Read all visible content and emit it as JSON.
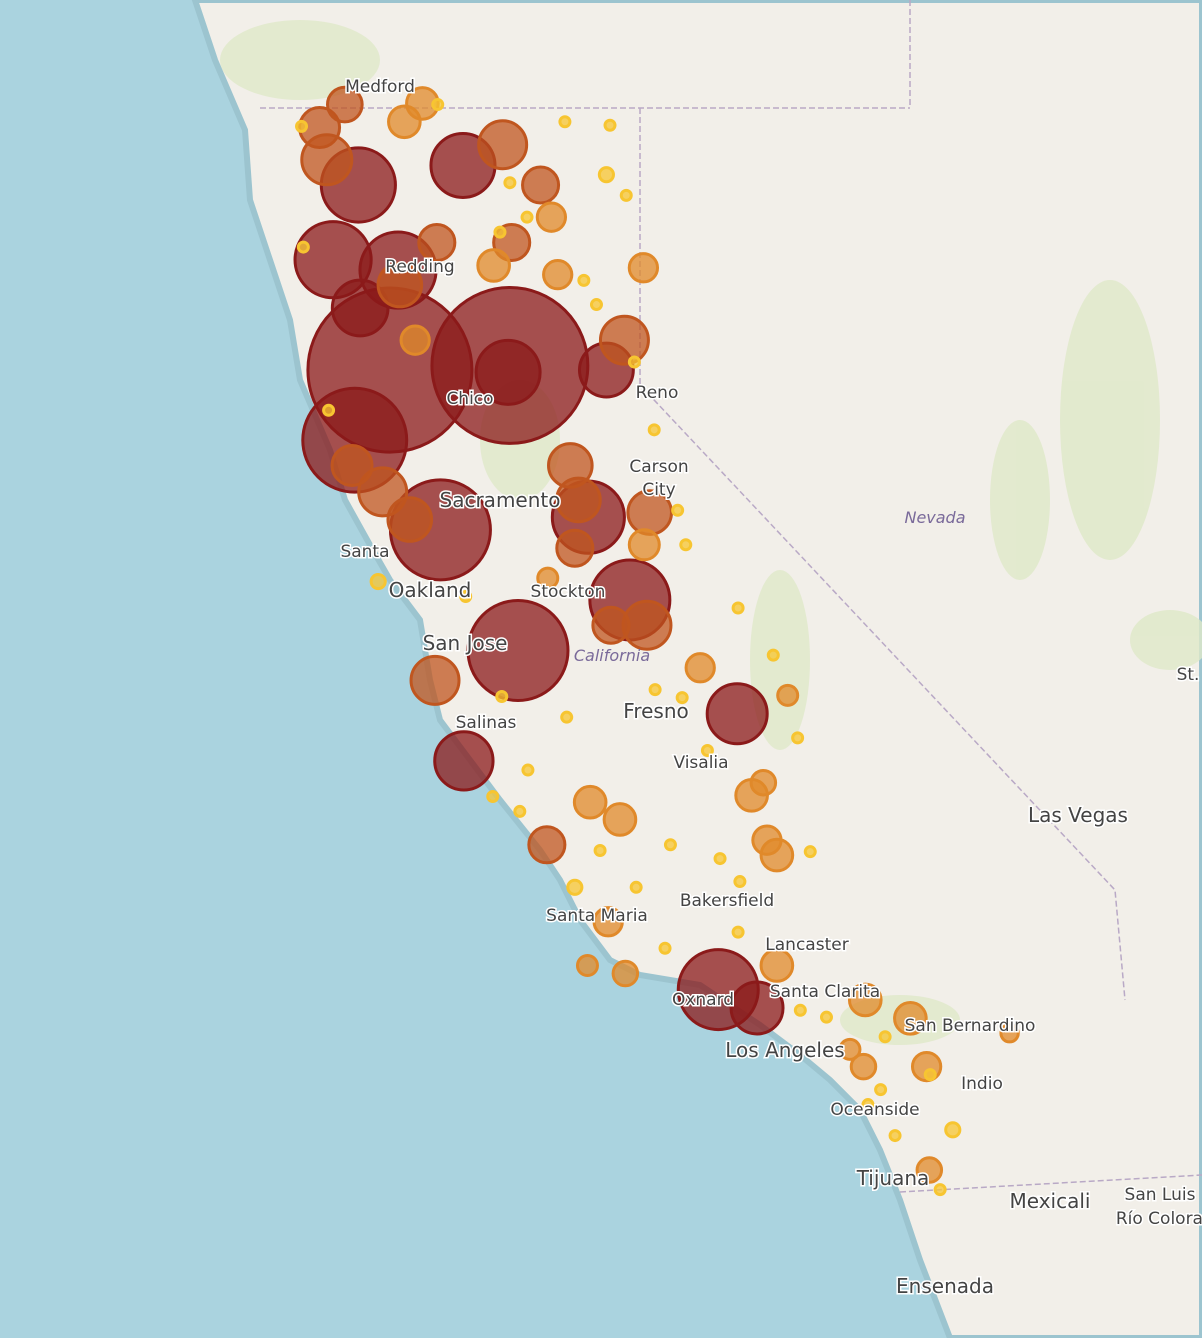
{
  "map": {
    "places": [
      "Medford",
      "Redding",
      "Chico",
      "Reno",
      "Carson",
      "City",
      "Sacramento",
      "Santa",
      "Oakland",
      "Stockton",
      "San Jose",
      "California",
      "Fresno",
      "Salinas",
      "Visalia",
      "Bakersfield",
      "Santa Maria",
      "Lancaster",
      "Santa Clarita",
      "San Bernardino",
      "Oxnard",
      "Los Angeles",
      "Indio",
      "Oceanside",
      "Tijuana",
      "Mexicali",
      "San Luis",
      "Río Colorado",
      "Ensenada",
      "Las Vegas",
      "Nevada",
      "St."
    ],
    "fire_layers": [
      {
        "color": "#8b1a1a",
        "fires": [
          {
            "lon": -122.76,
            "lat": 39.85,
            "size": 269
          },
          {
            "lon": -121.43,
            "lat": 39.89,
            "size": 243
          },
          {
            "lon": -123.15,
            "lat": 39.24,
            "size": 108
          },
          {
            "lon": -122.2,
            "lat": 38.46,
            "size": 100
          },
          {
            "lon": -121.34,
            "lat": 37.41,
            "size": 100
          },
          {
            "lon": -119.12,
            "lat": 34.46,
            "size": 64
          },
          {
            "lon": -120.1,
            "lat": 37.85,
            "size": 64
          },
          {
            "lon": -123.39,
            "lat": 40.81,
            "size": 58
          },
          {
            "lon": -122.67,
            "lat": 40.72,
            "size": 58
          },
          {
            "lon": -123.11,
            "lat": 41.46,
            "size": 55
          },
          {
            "lon": -120.56,
            "lat": 38.57,
            "size": 52
          },
          {
            "lon": -121.95,
            "lat": 41.63,
            "size": 41
          },
          {
            "lon": -121.45,
            "lat": 39.83,
            "size": 41
          },
          {
            "lon": -118.91,
            "lat": 36.86,
            "size": 36
          },
          {
            "lon": -121.94,
            "lat": 36.45,
            "size": 34
          },
          {
            "lon": -123.09,
            "lat": 40.39,
            "size": 31
          },
          {
            "lon": -120.36,
            "lat": 39.85,
            "size": 29
          },
          {
            "lon": -118.69,
            "lat": 34.3,
            "size": 27
          }
        ]
      },
      {
        "color": "#c0561f",
        "fires": [
          {
            "lon": -123.54,
            "lat": 41.96,
            "size": 16
          },
          {
            "lon": -123.46,
            "lat": 41.68,
            "size": 25
          },
          {
            "lon": -123.26,
            "lat": 42.16,
            "size": 12
          },
          {
            "lon": -121.51,
            "lat": 41.81,
            "size": 23
          },
          {
            "lon": -121.09,
            "lat": 41.46,
            "size": 13
          },
          {
            "lon": -121.41,
            "lat": 40.96,
            "size": 13
          },
          {
            "lon": -120.16,
            "lat": 40.11,
            "size": 23
          },
          {
            "lon": -122.24,
            "lat": 40.96,
            "size": 13
          },
          {
            "lon": -122.65,
            "lat": 40.59,
            "size": 19
          },
          {
            "lon": -120.76,
            "lat": 39.02,
            "size": 19
          },
          {
            "lon": -120.67,
            "lat": 38.72,
            "size": 19
          },
          {
            "lon": -119.88,
            "lat": 38.61,
            "size": 19
          },
          {
            "lon": -120.71,
            "lat": 38.3,
            "size": 13
          },
          {
            "lon": -122.84,
            "lat": 38.79,
            "size": 23
          },
          {
            "lon": -122.54,
            "lat": 38.55,
            "size": 19
          },
          {
            "lon": -123.18,
            "lat": 39.02,
            "size": 16
          },
          {
            "lon": -122.26,
            "lat": 37.15,
            "size": 23
          },
          {
            "lon": -119.91,
            "lat": 37.63,
            "size": 23
          },
          {
            "lon": -120.31,
            "lat": 37.63,
            "size": 13
          },
          {
            "lon": -121.02,
            "lat": 35.72,
            "size": 13
          }
        ]
      },
      {
        "color": "#e0892a",
        "fires": [
          {
            "lon": -122.6,
            "lat": 42.01,
            "size": 10
          },
          {
            "lon": -122.4,
            "lat": 42.17,
            "size": 10
          },
          {
            "lon": -120.97,
            "lat": 41.18,
            "size": 8
          },
          {
            "lon": -121.61,
            "lat": 40.76,
            "size": 10
          },
          {
            "lon": -120.9,
            "lat": 40.68,
            "size": 8
          },
          {
            "lon": -119.95,
            "lat": 40.74,
            "size": 8
          },
          {
            "lon": -119.94,
            "lat": 38.33,
            "size": 9
          },
          {
            "lon": -119.32,
            "lat": 37.26,
            "size": 8
          },
          {
            "lon": -120.54,
            "lat": 36.09,
            "size": 10
          },
          {
            "lon": -120.21,
            "lat": 35.94,
            "size": 10
          },
          {
            "lon": -118.75,
            "lat": 36.15,
            "size": 10
          },
          {
            "lon": -118.47,
            "lat": 35.63,
            "size": 10
          },
          {
            "lon": -118.58,
            "lat": 35.76,
            "size": 8
          },
          {
            "lon": -120.34,
            "lat": 35.05,
            "size": 8
          },
          {
            "lon": -118.47,
            "lat": 34.67,
            "size": 10
          },
          {
            "lon": -117.49,
            "lat": 34.37,
            "size": 10
          },
          {
            "lon": -116.99,
            "lat": 34.21,
            "size": 10
          },
          {
            "lon": -116.81,
            "lat": 33.79,
            "size": 8
          },
          {
            "lon": -116.78,
            "lat": 32.89,
            "size": 6
          },
          {
            "lon": -117.51,
            "lat": 33.79,
            "size": 6
          },
          {
            "lon": -122.48,
            "lat": 40.11,
            "size": 8
          },
          {
            "lon": -118.35,
            "lat": 37.02,
            "size": 4
          },
          {
            "lon": -120.57,
            "lat": 34.67,
            "size": 4
          },
          {
            "lon": -120.15,
            "lat": 34.6,
            "size": 6
          },
          {
            "lon": -121.01,
            "lat": 38.04,
            "size": 4
          },
          {
            "lon": -115.89,
            "lat": 34.08,
            "size": 3
          },
          {
            "lon": -118.62,
            "lat": 36.26,
            "size": 6
          },
          {
            "lon": -117.66,
            "lat": 33.94,
            "size": 4
          }
        ]
      },
      {
        "color": "#f7c531",
        "fires": [
          {
            "lon": -123.74,
            "lat": 41.97,
            "size": 1
          },
          {
            "lon": -123.72,
            "lat": 40.92,
            "size": 1
          },
          {
            "lon": -122.23,
            "lat": 42.16,
            "size": 1
          },
          {
            "lon": -120.82,
            "lat": 42.01,
            "size": 1
          },
          {
            "lon": -120.32,
            "lat": 41.98,
            "size": 1
          },
          {
            "lon": -120.36,
            "lat": 41.55,
            "size": 2
          },
          {
            "lon": -120.14,
            "lat": 41.37,
            "size": 1
          },
          {
            "lon": -121.54,
            "lat": 41.05,
            "size": 1
          },
          {
            "lon": -121.43,
            "lat": 41.48,
            "size": 1
          },
          {
            "lon": -121.24,
            "lat": 41.18,
            "size": 1
          },
          {
            "lon": -120.61,
            "lat": 40.63,
            "size": 1
          },
          {
            "lon": -120.47,
            "lat": 40.42,
            "size": 1
          },
          {
            "lon": -120.05,
            "lat": 39.92,
            "size": 1
          },
          {
            "lon": -119.83,
            "lat": 39.33,
            "size": 1
          },
          {
            "lon": -119.48,
            "lat": 38.33,
            "size": 1
          },
          {
            "lon": -119.57,
            "lat": 38.63,
            "size": 1
          },
          {
            "lon": -118.9,
            "lat": 37.78,
            "size": 1
          },
          {
            "lon": -118.51,
            "lat": 37.37,
            "size": 1
          },
          {
            "lon": -119.52,
            "lat": 37.0,
            "size": 1
          },
          {
            "lon": -119.82,
            "lat": 37.07,
            "size": 1
          },
          {
            "lon": -120.8,
            "lat": 36.83,
            "size": 1
          },
          {
            "lon": -121.23,
            "lat": 36.37,
            "size": 1
          },
          {
            "lon": -121.62,
            "lat": 36.14,
            "size": 1
          },
          {
            "lon": -121.32,
            "lat": 36.01,
            "size": 1
          },
          {
            "lon": -120.43,
            "lat": 35.67,
            "size": 1
          },
          {
            "lon": -119.65,
            "lat": 35.72,
            "size": 1
          },
          {
            "lon": -119.1,
            "lat": 35.6,
            "size": 1
          },
          {
            "lon": -118.1,
            "lat": 35.66,
            "size": 1
          },
          {
            "lon": -118.88,
            "lat": 35.4,
            "size": 1
          },
          {
            "lon": -120.71,
            "lat": 35.35,
            "size": 2
          },
          {
            "lon": -120.03,
            "lat": 35.35,
            "size": 1
          },
          {
            "lon": -119.71,
            "lat": 34.82,
            "size": 1
          },
          {
            "lon": -118.9,
            "lat": 34.96,
            "size": 1
          },
          {
            "lon": -118.21,
            "lat": 34.28,
            "size": 1
          },
          {
            "lon": -117.92,
            "lat": 34.22,
            "size": 1
          },
          {
            "lon": -117.27,
            "lat": 34.05,
            "size": 1
          },
          {
            "lon": -117.32,
            "lat": 33.59,
            "size": 1
          },
          {
            "lon": -117.46,
            "lat": 33.46,
            "size": 1
          },
          {
            "lon": -117.16,
            "lat": 33.19,
            "size": 1
          },
          {
            "lon": -116.77,
            "lat": 33.72,
            "size": 1
          },
          {
            "lon": -116.52,
            "lat": 33.24,
            "size": 2
          },
          {
            "lon": -116.66,
            "lat": 32.72,
            "size": 1
          },
          {
            "lon": -122.89,
            "lat": 38.01,
            "size": 2
          },
          {
            "lon": -121.92,
            "lat": 37.88,
            "size": 1
          },
          {
            "lon": -121.52,
            "lat": 37.01,
            "size": 1
          },
          {
            "lon": -123.44,
            "lat": 39.5,
            "size": 1
          },
          {
            "lon": -118.24,
            "lat": 36.65,
            "size": 1
          },
          {
            "lon": -119.24,
            "lat": 36.54,
            "size": 1
          }
        ]
      }
    ]
  }
}
